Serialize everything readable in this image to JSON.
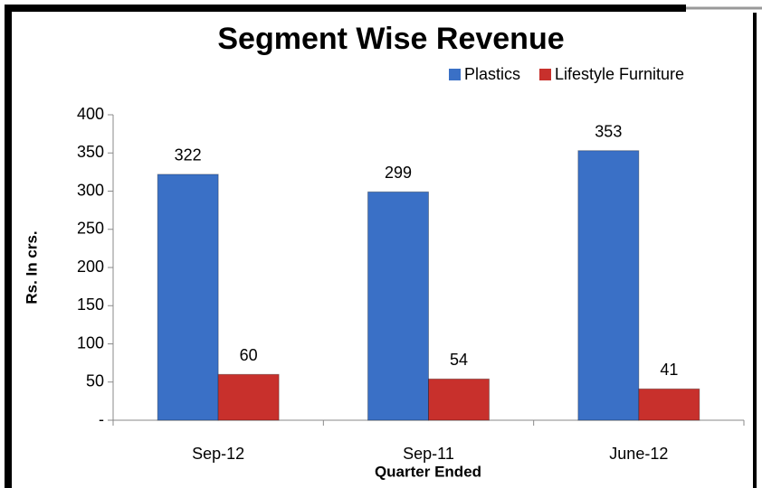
{
  "chart_data": {
    "type": "bar",
    "title": "Segment Wise Revenue",
    "y_label": "Rs. In crs.",
    "x_label": "Quarter Ended",
    "categories": [
      "Sep-12",
      "Sep-11",
      "June-12"
    ],
    "series": [
      {
        "name": "Plastics",
        "color": "#3a70c6",
        "values": [
          322,
          299,
          353
        ]
      },
      {
        "name": "Lifestyle Furniture",
        "color": "#c8302c",
        "values": [
          60,
          54,
          41
        ]
      }
    ],
    "ylim": [
      0,
      400
    ],
    "yticks": [
      {
        "value": 0,
        "label": "-"
      },
      50,
      100,
      150,
      200,
      250,
      300,
      350,
      400
    ],
    "legend": "top-right"
  }
}
